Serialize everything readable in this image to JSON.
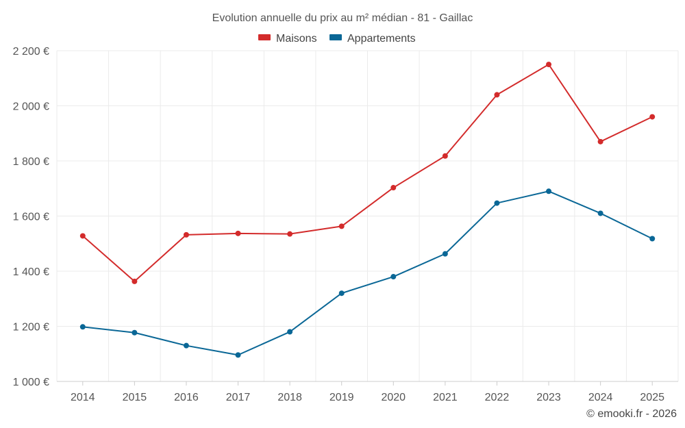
{
  "chart_data": {
    "type": "line",
    "title": "Evolution annuelle du prix au m² médian - 81 - Gaillac",
    "categories": [
      "2014",
      "2015",
      "2016",
      "2017",
      "2018",
      "2019",
      "2020",
      "2021",
      "2022",
      "2023",
      "2024",
      "2025"
    ],
    "series": [
      {
        "name": "Maisons",
        "color": "#d32b2b",
        "values": [
          1528,
          1363,
          1532,
          1537,
          1535,
          1563,
          1703,
          1818,
          2040,
          2150,
          1870,
          1960
        ]
      },
      {
        "name": "Appartements",
        "color": "#0a6796",
        "values": [
          1198,
          1177,
          1130,
          1096,
          1180,
          1320,
          1380,
          1463,
          1647,
          1690,
          1610,
          1518
        ]
      }
    ],
    "ylim": [
      1000,
      2200
    ],
    "yticks": [
      1000,
      1200,
      1400,
      1600,
      1800,
      2000,
      2200
    ],
    "ytick_labels": [
      "1 000 €",
      "1 200 €",
      "1 400 €",
      "1 600 €",
      "1 800 €",
      "2 000 €",
      "2 200 €"
    ],
    "xlabel": "",
    "ylabel": "",
    "grid": true,
    "legend_position": "top-center"
  },
  "footer": {
    "credit": "© emooki.fr - 2026"
  }
}
